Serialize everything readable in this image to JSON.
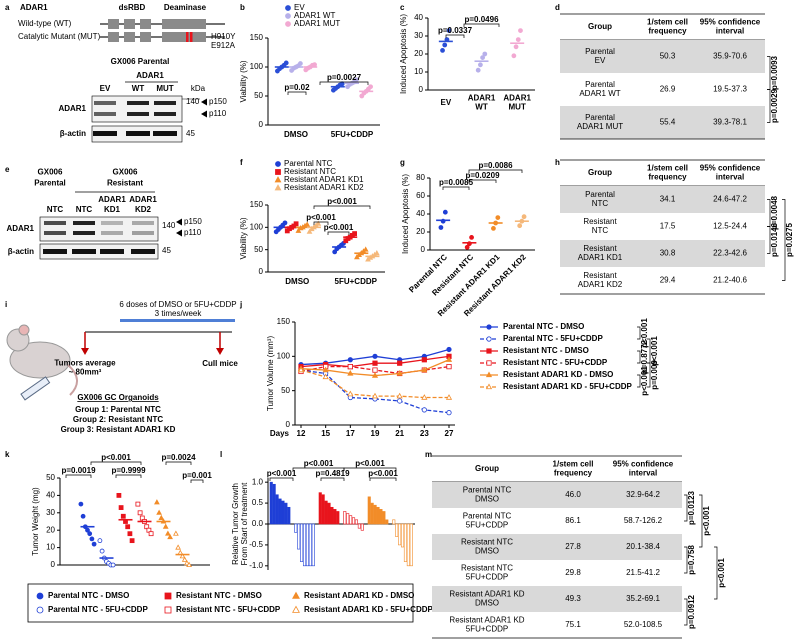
{
  "panel_labels": [
    "a",
    "b",
    "c",
    "d",
    "e",
    "f",
    "g",
    "h",
    "i",
    "j",
    "k",
    "l",
    "m"
  ],
  "panel_a": {
    "protein": "ADAR1",
    "wt": "Wild-type (WT)",
    "mut": "Catalytic Mutant (MUT)",
    "domain1": "dsRBD",
    "domain2": "Deaminase",
    "mutations": [
      "H910Y",
      "E912A"
    ],
    "blot_title": "GX006 Parental",
    "blot_group": "ADAR1",
    "lanes": [
      "EV",
      "WT",
      "MUT"
    ],
    "kda": "kDa",
    "rows": [
      "ADAR1",
      "β-actin"
    ],
    "markers": [
      "140",
      "45"
    ],
    "bands": [
      "p150",
      "p110"
    ]
  },
  "panel_e": {
    "groups": [
      [
        "GX006",
        "Parental"
      ],
      [
        "GX006",
        "Resistant"
      ]
    ],
    "lane_top": [
      "ADAR1",
      "ADAR1"
    ],
    "lanes": [
      "NTC",
      "NTC",
      "KD1",
      "KD2"
    ],
    "rows": [
      "ADAR1",
      "β-actin"
    ],
    "markers": [
      "140",
      "45"
    ],
    "bands": [
      "p150",
      "p110"
    ]
  },
  "panel_i": {
    "treatment": "6 doses of DMSO or 5FU+CDDP",
    "schedule": "3 times/week",
    "start": [
      "Tumors average",
      "~ 80mm³"
    ],
    "end": "Cull mice",
    "model": "GX006 GC Organoids",
    "groups": [
      "Group 1: Parental NTC",
      "Group 2: Resistant NTC",
      "Group 3: Resistant ADAR1 KD"
    ]
  },
  "chart_data": [
    {
      "type": "dot",
      "ylabel": "Viability (%)",
      "categories": [
        "DMSO",
        "5FU+CDDP"
      ],
      "ylim": [
        0,
        150
      ],
      "yticks": [
        0,
        50,
        100,
        150
      ],
      "series": [
        {
          "name": "EV",
          "color": "#2b4fd6",
          "values": [
            100,
            66
          ],
          "points": [
            [
              93,
              97,
              100,
              103,
              107
            ],
            [
              60,
              63,
              66,
              69,
              71
            ]
          ]
        },
        {
          "name": "ADAR1 WT",
          "color": "#b7b0ea",
          "values": [
            100,
            72
          ],
          "points": [
            [
              94,
              98,
              100,
              102,
              106
            ],
            [
              66,
              70,
              72,
              74,
              78
            ]
          ]
        },
        {
          "name": "ADAR1 MUT",
          "color": "#f2a9d2",
          "values": [
            100,
            58
          ],
          "points": [
            [
              95,
              98,
              100,
              103,
              104
            ],
            [
              50,
              55,
              58,
              62,
              66
            ]
          ]
        }
      ],
      "annotations": [
        "p=0.02",
        "p=0.0027"
      ]
    },
    {
      "type": "dot",
      "ylabel": "Induced Apoptosis (%)",
      "categories": [
        [
          "EV"
        ],
        [
          "ADAR1",
          "WT"
        ],
        [
          "ADAR1",
          "MUT"
        ]
      ],
      "ylim": [
        0,
        40
      ],
      "yticks": [
        0,
        10,
        20,
        30,
        40
      ],
      "values": [
        27,
        16,
        26
      ],
      "colors": [
        "#2b4fd6",
        "#b7b0ea",
        "#f2a9d2"
      ],
      "points": [
        [
          22,
          25,
          28,
          33
        ],
        [
          11,
          14,
          18,
          20
        ],
        [
          19,
          24,
          28,
          33
        ]
      ],
      "annotations": [
        "p=0.0337",
        "p=0.0496"
      ]
    },
    {
      "type": "dot",
      "ylabel": "Viability (%)",
      "categories": [
        "DMSO",
        "5FU+CDDP"
      ],
      "ylim": [
        0,
        150
      ],
      "yticks": [
        0,
        50,
        100,
        150
      ],
      "series": [
        {
          "name": "Parental NTC",
          "color": "#1f3fd6",
          "marker": "circle",
          "values": [
            100,
            56
          ],
          "points": [
            [
              90,
              95,
              100,
              105,
              110
            ],
            [
              45,
              52,
              56,
              60,
              64
            ]
          ]
        },
        {
          "name": "Resistant NTC",
          "color": "#e8141c",
          "marker": "square",
          "values": [
            100,
            78
          ],
          "points": [
            [
              92,
              97,
              100,
              103,
              108
            ],
            [
              70,
              75,
              78,
              82,
              86
            ]
          ]
        },
        {
          "name": "Resistant ADAR1 KD1",
          "color": "#f28c28",
          "marker": "triangle",
          "values": [
            100,
            42
          ],
          "points": [
            [
              92,
              98,
              100,
              103,
              106
            ],
            [
              33,
              38,
              42,
              46,
              50
            ]
          ]
        },
        {
          "name": "Resistant ADAR1 KD2",
          "color": "#f5b87a",
          "marker": "triangle",
          "values": [
            100,
            35
          ],
          "points": [
            [
              90,
              96,
              100,
              104,
              108
            ],
            [
              28,
              32,
              35,
              38,
              42
            ]
          ]
        }
      ],
      "annotations": [
        "p<0.001",
        "p<0.001",
        "p<0.001"
      ]
    },
    {
      "type": "dot",
      "ylabel": "Induced Apoptosis (%)",
      "categories": [
        "Parental NTC",
        "Resistant NTC",
        "Resistant ADAR1 KD1",
        "Resistant ADAR1 KD2"
      ],
      "rotate_labels": true,
      "ylim": [
        0,
        80
      ],
      "yticks": [
        0,
        20,
        40,
        60,
        80
      ],
      "values": [
        33,
        8,
        30,
        32
      ],
      "colors": [
        "#1f3fd6",
        "#e8141c",
        "#f28c28",
        "#f5b87a"
      ],
      "points": [
        [
          25,
          32,
          42
        ],
        [
          3,
          7,
          14
        ],
        [
          24,
          30,
          36
        ],
        [
          27,
          32,
          37
        ]
      ],
      "annotations": [
        "p=0.0085",
        "p=0.0209",
        "p=0.0086"
      ]
    },
    {
      "type": "line",
      "ylabel": "Tumor Volume (mm³)",
      "xlabel": "Days",
      "categories": [
        "12",
        "15",
        "17",
        "19",
        "21",
        "23",
        "27"
      ],
      "ylim": [
        0,
        150
      ],
      "yticks": [
        0,
        50,
        100,
        150
      ],
      "series": [
        {
          "name": "Parental NTC - DMSO",
          "color": "#1f3fd6",
          "dash": false,
          "marker": "circle",
          "open": false,
          "values": [
            88,
            90,
            95,
            100,
            95,
            100,
            110
          ]
        },
        {
          "name": "Parental NTC - 5FU+CDDP",
          "color": "#1f3fd6",
          "dash": true,
          "marker": "circle",
          "open": true,
          "values": [
            80,
            75,
            40,
            38,
            35,
            22,
            18
          ]
        },
        {
          "name": "Resistant NTC - DMSO",
          "color": "#e8141c",
          "dash": false,
          "marker": "square",
          "open": false,
          "values": [
            85,
            88,
            85,
            90,
            90,
            95,
            100
          ]
        },
        {
          "name": "Resistant NTC - 5FU+CDDP",
          "color": "#e8141c",
          "dash": true,
          "marker": "square",
          "open": true,
          "values": [
            78,
            85,
            85,
            80,
            75,
            80,
            85
          ]
        },
        {
          "name": "Resistant ADAR1 KD - DMSO",
          "color": "#f28c28",
          "dash": false,
          "marker": "triangle",
          "open": false,
          "values": [
            82,
            80,
            75,
            72,
            75,
            80,
            95
          ]
        },
        {
          "name": "Resistant ADAR1 KD - 5FU+CDDP",
          "color": "#f28c28",
          "dash": true,
          "marker": "triangle",
          "open": true,
          "values": [
            80,
            70,
            45,
            42,
            42,
            40,
            40
          ]
        }
      ],
      "annotations": [
        "p<0.001",
        "p=0.8772",
        "p<0.001",
        "p<0.001",
        "p=0.009"
      ]
    },
    {
      "type": "dot",
      "ylabel": "Tumor Weight (mg)",
      "ylim": [
        0,
        50
      ],
      "yticks": [
        0,
        10,
        20,
        30,
        40,
        50
      ],
      "series": [
        {
          "name": "Parental NTC - DMSO",
          "color": "#1f3fd6",
          "marker": "circle",
          "open": false,
          "values": [
            22
          ],
          "points": [
            [
              35,
              28,
              22,
              20,
              18,
              15,
              12
            ]
          ]
        },
        {
          "name": "Parental NTC - 5FU+CDDP",
          "color": "#1f3fd6",
          "marker": "circle",
          "open": true,
          "values": [
            4
          ],
          "points": [
            [
              14,
              8,
              4,
              2,
              1,
              0,
              0
            ]
          ]
        },
        {
          "name": "Resistant NTC - DMSO",
          "color": "#e8141c",
          "marker": "square",
          "open": false,
          "values": [
            26
          ],
          "points": [
            [
              40,
              33,
              28,
              25,
              22,
              18,
              14
            ]
          ]
        },
        {
          "name": "Resistant NTC - 5FU+CDDP",
          "color": "#e8141c",
          "marker": "square",
          "open": true,
          "values": [
            25
          ],
          "points": [
            [
              35,
              30,
              27,
              25,
              22,
              20,
              18
            ]
          ]
        },
        {
          "name": "Resistant ADAR1 KD - DMSO",
          "color": "#f28c28",
          "marker": "triangle",
          "open": false,
          "values": [
            25
          ],
          "points": [
            [
              36,
              30,
              27,
              25,
              22,
              18,
              16
            ]
          ]
        },
        {
          "name": "Resistant ADAR1 KD - 5FU+CDDP",
          "color": "#f28c28",
          "marker": "triangle",
          "open": true,
          "values": [
            6
          ],
          "points": [
            [
              18,
              10,
              7,
              5,
              3,
              1,
              0
            ]
          ]
        }
      ],
      "annotations": [
        "p=0.0019",
        "p<0.001",
        "p=0.9999",
        "p=0.0024",
        "p=0.001"
      ]
    },
    {
      "type": "waterfall",
      "ylabel": [
        "Relative Tumor Growth",
        "From Start of treatment"
      ],
      "ylim": [
        -1.1,
        1.1
      ],
      "yticks": [
        {
          "value": -1,
          "label": "-1.0"
        },
        -0.5,
        {
          "value": 0,
          "label": "0.0"
        },
        0.5,
        {
          "value": 1,
          "label": "1.0"
        }
      ],
      "series": [
        {
          "color": "#1f3fd6",
          "open": false,
          "values": [
            1.0,
            0.95,
            0.7,
            0.6,
            0.55,
            0.5,
            0.4
          ]
        },
        {
          "color": "#1f3fd6",
          "open": true,
          "values": [
            -0.2,
            -0.6,
            -0.9,
            -1.0,
            -1.0,
            -1.0,
            -1.0
          ]
        },
        {
          "color": "#e8141c",
          "open": false,
          "values": [
            0.75,
            0.7,
            0.55,
            0.5,
            0.4,
            0.35,
            0.3
          ]
        },
        {
          "color": "#e8141c",
          "open": true,
          "values": [
            0.3,
            0.25,
            0.2,
            0.15,
            0.1,
            -0.1,
            -0.15
          ]
        },
        {
          "color": "#f28c28",
          "open": false,
          "values": [
            0.65,
            0.5,
            0.45,
            0.4,
            0.35,
            0.3,
            0.1
          ]
        },
        {
          "color": "#f28c28",
          "open": true,
          "values": [
            0.1,
            -0.3,
            -0.5,
            -0.55,
            -0.9,
            -1.0,
            -1.0
          ]
        }
      ],
      "annotations": [
        "p<0.001",
        "p<0.001",
        "p=0.4819",
        "p<0.001",
        "p<0.001"
      ]
    }
  ],
  "tables": [
    {
      "header": [
        [
          "Group"
        ],
        [
          "1/stem cell",
          "frequency"
        ],
        [
          "95% confidence",
          "interval"
        ]
      ],
      "rows": [
        [
          [
            "Parental",
            "EV"
          ],
          "50.3",
          "35.9-70.6"
        ],
        [
          [
            "Parental",
            "ADAR1 WT"
          ],
          "26.9",
          "19.5-37.3"
        ],
        [
          [
            "Parental",
            "ADAR1 MUT"
          ],
          "55.4",
          "39.3-78.1"
        ]
      ],
      "p_values": [
        "p=0.0093",
        "p=0.0029"
      ]
    },
    {
      "header": [
        [
          "Group"
        ],
        [
          "1/stem cell",
          "frequency"
        ],
        [
          "95% confidence",
          "interval"
        ]
      ],
      "rows": [
        [
          [
            "Parental",
            "NTC"
          ],
          "34.1",
          "24.6-47.2"
        ],
        [
          [
            "Resistant",
            "NTC"
          ],
          "17.5",
          "12.5-24.4"
        ],
        [
          [
            "Resistant",
            "ADAR1 KD1"
          ],
          "30.8",
          "22.3-42.6"
        ],
        [
          [
            "Resistant",
            "ADAR1 KD2"
          ],
          "29.4",
          "21.2-40.6"
        ]
      ],
      "p_values": [
        "p=0.0048",
        "p=0.0146",
        "p=0.0275"
      ]
    },
    {
      "header": [
        [
          "Group"
        ],
        [
          "1/stem cell",
          "frequency"
        ],
        [
          "95% confidence",
          "interval"
        ]
      ],
      "rows": [
        [
          [
            "Parental NTC",
            "DMSO"
          ],
          "46.0",
          "32.9-64.2"
        ],
        [
          [
            "Parental NTC",
            "5FU+CDDP"
          ],
          "86.1",
          "58.7-126.2"
        ],
        [
          [
            "Resistant NTC",
            "DMSO"
          ],
          "27.8",
          "20.1-38.4"
        ],
        [
          [
            "Resistant NTC",
            "5FU+CDDP"
          ],
          "29.8",
          "21.5-41.2"
        ],
        [
          [
            "Resistant ADAR1 KD",
            "DMSO"
          ],
          "49.3",
          "35.2-69.1"
        ],
        [
          [
            "Resistant ADAR1 KD",
            "5FU+CDDP"
          ],
          "75.1",
          "52.0-108.5"
        ]
      ],
      "p_values": [
        "p=0.0123",
        "p=0.758",
        "p=0.0912",
        "p<0.001",
        "p<0.001"
      ]
    }
  ]
}
